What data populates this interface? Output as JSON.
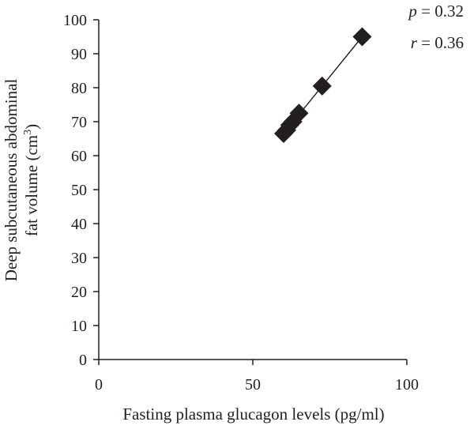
{
  "chart_data": {
    "type": "scatter",
    "xlabel": "Fasting plasma glucagon levels (pg/ml)",
    "ylabel_line1": "Deep subcutaneous abdominal",
    "ylabel_line2_prefix": "fat volume (cm",
    "ylabel_line2_sup": "3",
    "ylabel_line2_suffix": ")",
    "xlim": [
      0,
      100
    ],
    "ylim": [
      0,
      100
    ],
    "xticks": [
      0,
      50,
      100
    ],
    "yticks": [
      0,
      10,
      20,
      30,
      40,
      50,
      60,
      70,
      80,
      90,
      100
    ],
    "grid": false,
    "points": [
      {
        "x": 60,
        "y": 66.5
      },
      {
        "x": 61,
        "y": 67.5
      },
      {
        "x": 62,
        "y": 69
      },
      {
        "x": 63,
        "y": 70
      },
      {
        "x": 65,
        "y": 72.5
      },
      {
        "x": 72.5,
        "y": 80.5
      },
      {
        "x": 85.5,
        "y": 95
      }
    ],
    "trendline": {
      "x": [
        60,
        85.5
      ],
      "y": [
        66.5,
        95
      ]
    },
    "annotations": {
      "p_symbol": "p",
      "p_value": " = 0.32",
      "r_symbol": "r",
      "r_value": " = 0.36"
    }
  }
}
